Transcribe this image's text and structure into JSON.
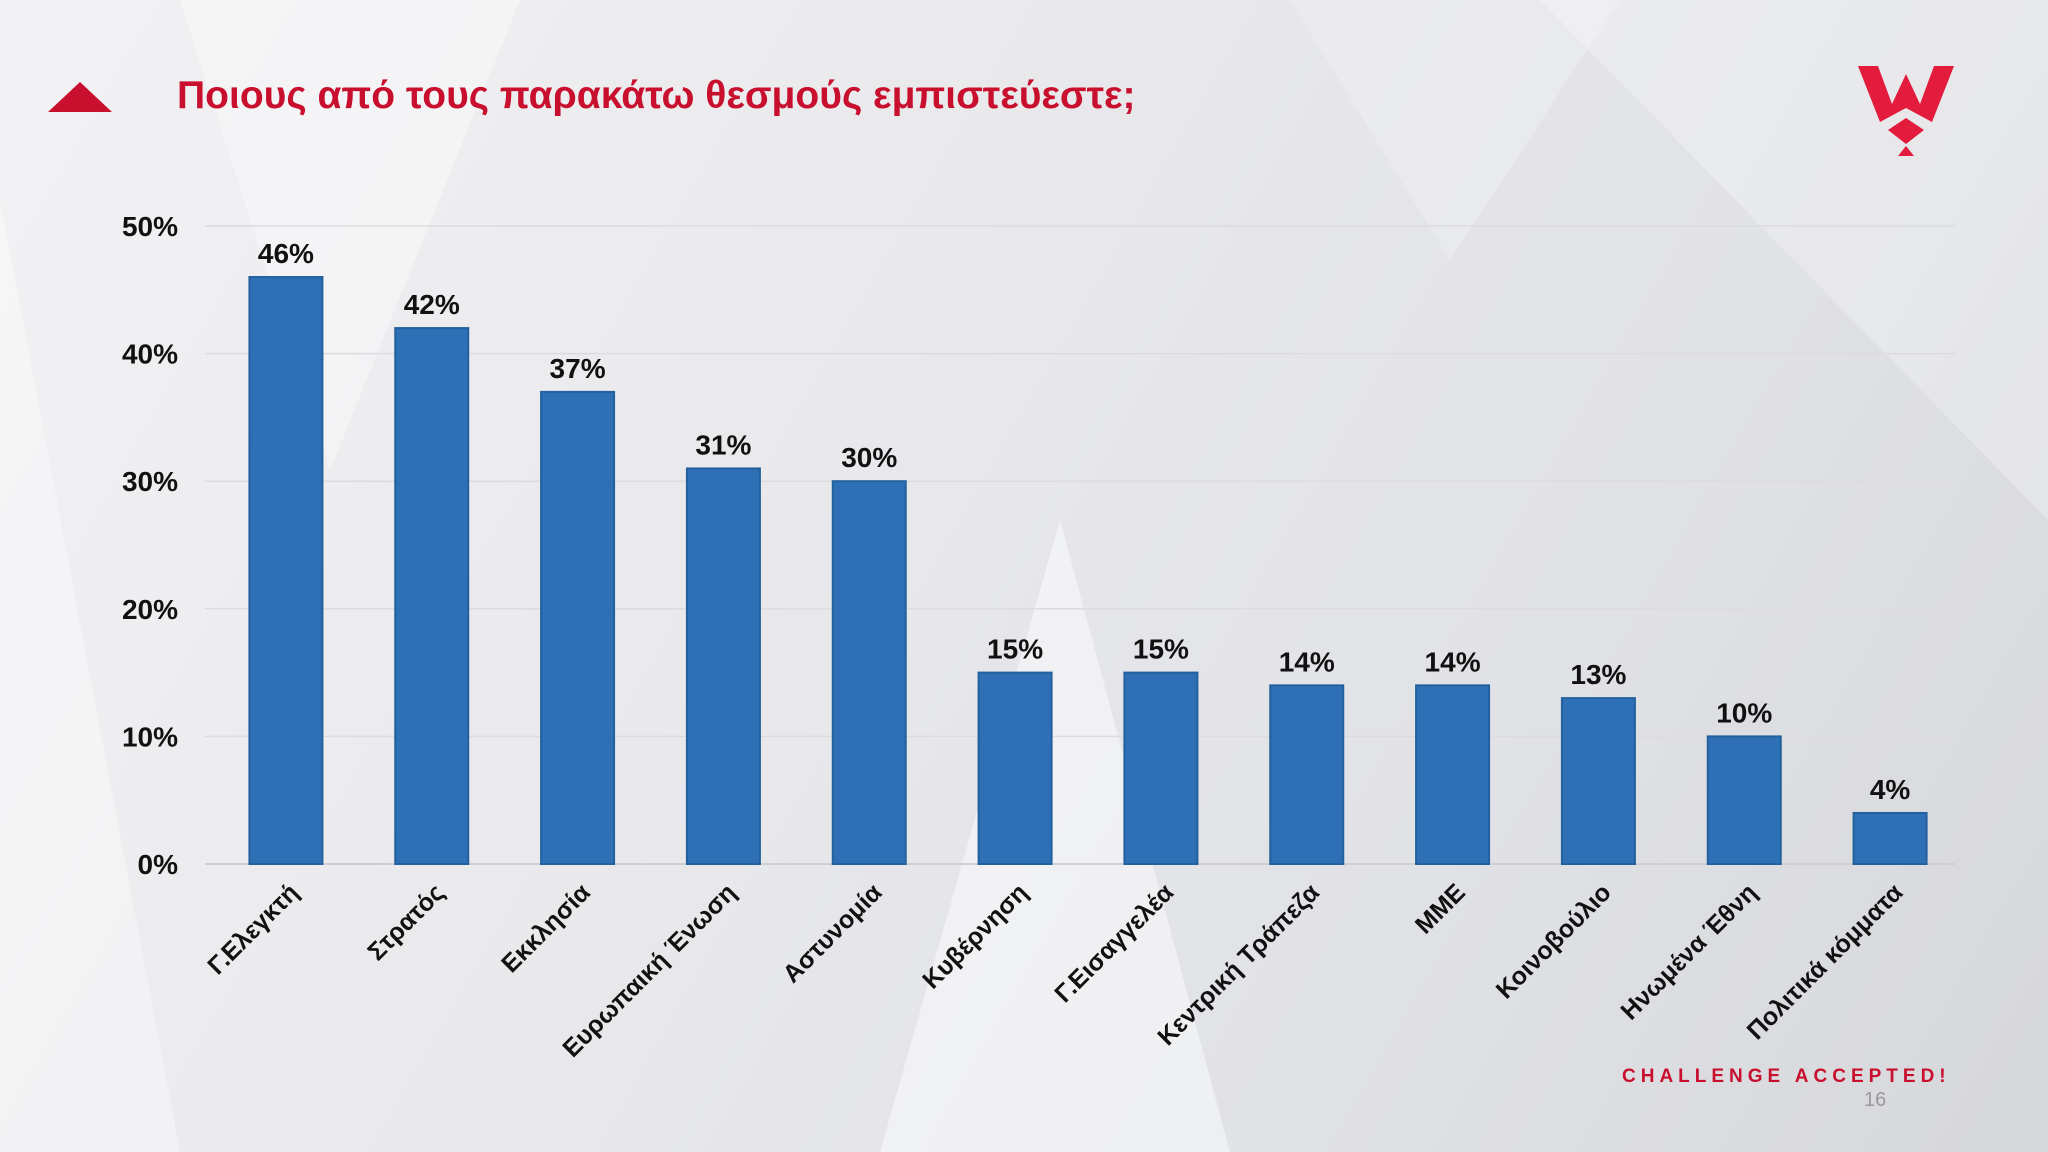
{
  "title": "Ποιους από τους παρακάτω θεσμούς εμπιστεύεστε;",
  "tagline": "CHALLENGE ACCEPTED!",
  "page_number": "16",
  "logo": {
    "icon": "w-crown-logo-icon",
    "color": "#e31b3c"
  },
  "colors": {
    "accent": "#c8102e",
    "bar": "#2e70b5",
    "bar_edge": "#23609e"
  },
  "chart_data": {
    "type": "bar",
    "title": "",
    "xlabel": "",
    "ylabel": "",
    "ylim": [
      0,
      50
    ],
    "yticks": [
      "0%",
      "10%",
      "20%",
      "30%",
      "40%",
      "50%"
    ],
    "grid": true,
    "categories": [
      "Γ.Ελεγκτή",
      "Στρατός",
      "Εκκλησία",
      "Ευρωπαική Ένωση",
      "Αστυνομία",
      "Κυβέρνηση",
      "Γ.Εισαγγελέα",
      "Κεντρική Τράπεζα",
      "ΜΜΕ",
      "Κοινοβούλιο",
      "Ηνωμένα Έθνη",
      "Πολιτικά κόμματα"
    ],
    "values": [
      46,
      42,
      37,
      31,
      30,
      15,
      15,
      14,
      14,
      13,
      10,
      4
    ],
    "data_labels": [
      "46%",
      "42%",
      "37%",
      "31%",
      "30%",
      "15%",
      "15%",
      "14%",
      "14%",
      "13%",
      "10%",
      "4%"
    ]
  }
}
